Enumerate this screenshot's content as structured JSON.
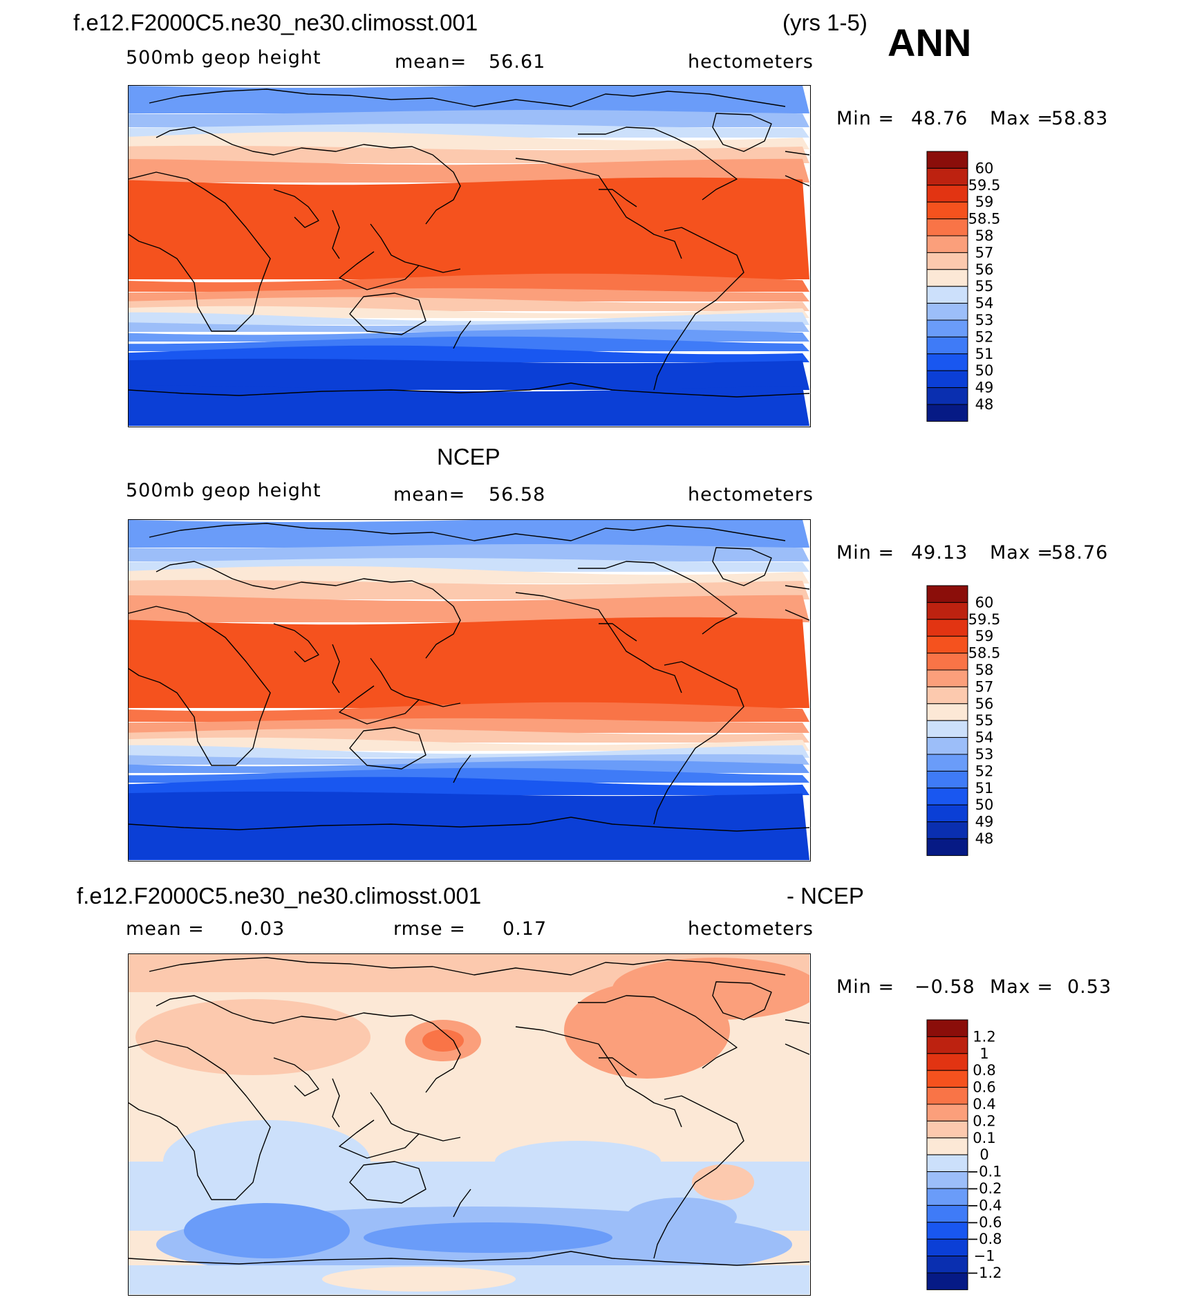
{
  "case_name": "f.e12.F2000C5.ne30_ne30.climosst.001",
  "years": "(yrs 1-5)",
  "season": "ANN",
  "colors": {
    "abs": [
      "#061a85",
      "#0a2fb0",
      "#0b3fd6",
      "#1957f0",
      "#3f7bf7",
      "#6a9cf9",
      "#9cbef9",
      "#cce0fb",
      "#fce8d6",
      "#fcc9ae",
      "#fb9f7b",
      "#f97447",
      "#f5521e",
      "#e23412",
      "#bd2210",
      "#8b0e0a"
    ],
    "diff": [
      "#061a85",
      "#0a2fb0",
      "#0b3fd6",
      "#1957f0",
      "#3f7bf7",
      "#6a9cf9",
      "#9cbef9",
      "#cce0fb",
      "#fce8d6",
      "#fcc9ae",
      "#fb9f7b",
      "#f97447",
      "#f5521e",
      "#e23412",
      "#bd2210",
      "#8b0e0a"
    ]
  },
  "chart_data": [
    {
      "type": "heatmap",
      "panel": "model",
      "title": "f.e12.F2000C5.ne30_ne30.climosst.001",
      "variable": "500mb geop height",
      "mean_label": "mean=",
      "mean": "56.61",
      "units": "hectometers",
      "min_label": "Min =",
      "min": "48.76",
      "max_label": "Max =",
      "max": "58.83",
      "colorbar_levels": [
        "60",
        "59.5",
        "59",
        "58.5",
        "58",
        "57",
        "56",
        "55",
        "54",
        "53",
        "52",
        "51",
        "50",
        "49",
        "48"
      ]
    },
    {
      "type": "heatmap",
      "panel": "obs",
      "title": "NCEP",
      "variable": "500mb geop height",
      "mean_label": "mean=",
      "mean": "56.58",
      "units": "hectometers",
      "min_label": "Min =",
      "min": "49.13",
      "max_label": "Max =",
      "max": "58.76",
      "colorbar_levels": [
        "60",
        "59.5",
        "59",
        "58.5",
        "58",
        "57",
        "56",
        "55",
        "54",
        "53",
        "52",
        "51",
        "50",
        "49",
        "48"
      ]
    },
    {
      "type": "heatmap",
      "panel": "difference",
      "title": "f.e12.F2000C5.ne30_ne30.climosst.001",
      "title_suffix": "- NCEP",
      "mean_label": "mean =",
      "mean": "0.03",
      "rmse_label": "rmse =",
      "rmse": "0.17",
      "units": "hectometers",
      "min_label": "Min =",
      "min": "−0.58",
      "max_label": "Max =",
      "max": "0.53",
      "colorbar_levels": [
        "1.2",
        "1",
        "0.8",
        "0.6",
        "0.4",
        "0.2",
        "0.1",
        "0",
        "−0.1",
        "−0.2",
        "−0.4",
        "−0.6",
        "−0.8",
        "−1",
        "−1.2"
      ]
    }
  ]
}
